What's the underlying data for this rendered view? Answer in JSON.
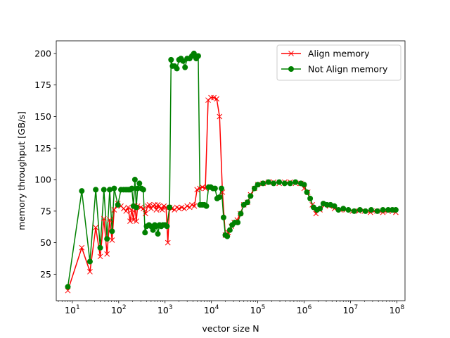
{
  "chart_data": {
    "type": "line",
    "title": "",
    "xlabel": "vector size N",
    "ylabel": "memory throughput [GB/s]",
    "x_scale": "log",
    "xlim": [
      4.5,
      150000000
    ],
    "ylim": [
      4,
      210
    ],
    "x_ticks": [
      {
        "value": 10,
        "base": "10",
        "exp": "1"
      },
      {
        "value": 100,
        "base": "10",
        "exp": "2"
      },
      {
        "value": 1000,
        "base": "10",
        "exp": "3"
      },
      {
        "value": 10000,
        "base": "10",
        "exp": "4"
      },
      {
        "value": 100000,
        "base": "10",
        "exp": "5"
      },
      {
        "value": 1000000,
        "base": "10",
        "exp": "6"
      },
      {
        "value": 10000000,
        "base": "10",
        "exp": "7"
      },
      {
        "value": 100000000,
        "base": "10",
        "exp": "8"
      }
    ],
    "y_ticks": [
      25,
      50,
      75,
      100,
      125,
      150,
      175,
      200
    ],
    "grid": false,
    "legend_position": "upper-right",
    "series": [
      {
        "name": "Align memory",
        "color": "#ff0000",
        "marker": "x",
        "points": [
          [
            8,
            12
          ],
          [
            16,
            46
          ],
          [
            24,
            27
          ],
          [
            32,
            62
          ],
          [
            40,
            39
          ],
          [
            48,
            69
          ],
          [
            56,
            41
          ],
          [
            64,
            68
          ],
          [
            72,
            52
          ],
          [
            80,
            76
          ],
          [
            96,
            81
          ],
          [
            112,
            79
          ],
          [
            128,
            77
          ],
          [
            144,
            75
          ],
          [
            160,
            78
          ],
          [
            176,
            67
          ],
          [
            192,
            76
          ],
          [
            208,
            68
          ],
          [
            224,
            79
          ],
          [
            240,
            67
          ],
          [
            256,
            79
          ],
          [
            300,
            78
          ],
          [
            340,
            77
          ],
          [
            380,
            73
          ],
          [
            420,
            79
          ],
          [
            460,
            80
          ],
          [
            500,
            77
          ],
          [
            550,
            79
          ],
          [
            600,
            80
          ],
          [
            650,
            76
          ],
          [
            700,
            80
          ],
          [
            750,
            79
          ],
          [
            800,
            77
          ],
          [
            870,
            76
          ],
          [
            950,
            79
          ],
          [
            1050,
            78
          ],
          [
            1150,
            50
          ],
          [
            1250,
            78
          ],
          [
            1400,
            77
          ],
          [
            1600,
            76
          ],
          [
            1800,
            78
          ],
          [
            2000,
            77
          ],
          [
            2300,
            78
          ],
          [
            2600,
            77
          ],
          [
            3000,
            79
          ],
          [
            3400,
            78
          ],
          [
            3800,
            80
          ],
          [
            4300,
            79
          ],
          [
            4900,
            92
          ],
          [
            5600,
            93
          ],
          [
            6400,
            94
          ],
          [
            7400,
            93
          ],
          [
            8500,
            163
          ],
          [
            9800,
            165
          ],
          [
            11300,
            165
          ],
          [
            13000,
            164
          ],
          [
            15000,
            150
          ],
          [
            17300,
            90
          ],
          [
            20000,
            56
          ],
          [
            23000,
            58
          ],
          [
            27000,
            63
          ],
          [
            31000,
            66
          ],
          [
            36000,
            68
          ],
          [
            42000,
            73
          ],
          [
            50000,
            80
          ],
          [
            60000,
            82
          ],
          [
            70000,
            88
          ],
          [
            85000,
            93
          ],
          [
            100000,
            96
          ],
          [
            130000,
            97
          ],
          [
            170000,
            98
          ],
          [
            220000,
            98
          ],
          [
            290000,
            97
          ],
          [
            380000,
            98
          ],
          [
            500000,
            98
          ],
          [
            650000,
            97
          ],
          [
            850000,
            97
          ],
          [
            1000000,
            93
          ],
          [
            1200000,
            90
          ],
          [
            1500000,
            80
          ],
          [
            1800000,
            73
          ],
          [
            2200000,
            76
          ],
          [
            2800000,
            80
          ],
          [
            3500000,
            79
          ],
          [
            4500000,
            77
          ],
          [
            6000000,
            76
          ],
          [
            8000000,
            76
          ],
          [
            11000000,
            75
          ],
          [
            15000000,
            75
          ],
          [
            20000000,
            75
          ],
          [
            27000000,
            74
          ],
          [
            37000000,
            75
          ],
          [
            50000000,
            74
          ],
          [
            65000000,
            75
          ],
          [
            80000000,
            75
          ],
          [
            95000000,
            74
          ]
        ]
      },
      {
        "name": "Not Align memory",
        "color": "#008000",
        "marker": "o",
        "points": [
          [
            8,
            15
          ],
          [
            16,
            91
          ],
          [
            24,
            35
          ],
          [
            32,
            92
          ],
          [
            40,
            46
          ],
          [
            48,
            92
          ],
          [
            56,
            53
          ],
          [
            64,
            92
          ],
          [
            72,
            59
          ],
          [
            80,
            93
          ],
          [
            96,
            80
          ],
          [
            112,
            92
          ],
          [
            128,
            92
          ],
          [
            144,
            92
          ],
          [
            160,
            92
          ],
          [
            176,
            92
          ],
          [
            192,
            93
          ],
          [
            208,
            79
          ],
          [
            224,
            100
          ],
          [
            240,
            78
          ],
          [
            256,
            93
          ],
          [
            280,
            97
          ],
          [
            310,
            93
          ],
          [
            340,
            92
          ],
          [
            370,
            58
          ],
          [
            400,
            63
          ],
          [
            450,
            64
          ],
          [
            500,
            63
          ],
          [
            550,
            60
          ],
          [
            600,
            64
          ],
          [
            650,
            63
          ],
          [
            700,
            57
          ],
          [
            760,
            64
          ],
          [
            830,
            63
          ],
          [
            900,
            64
          ],
          [
            1000,
            64
          ],
          [
            1100,
            63
          ],
          [
            1250,
            78
          ],
          [
            1350,
            195
          ],
          [
            1450,
            190
          ],
          [
            1600,
            190
          ],
          [
            1800,
            188
          ],
          [
            2000,
            195
          ],
          [
            2200,
            196
          ],
          [
            2450,
            194
          ],
          [
            2700,
            189
          ],
          [
            3000,
            196
          ],
          [
            3400,
            196
          ],
          [
            3800,
            198
          ],
          [
            4200,
            200
          ],
          [
            4700,
            196
          ],
          [
            5200,
            198
          ],
          [
            5700,
            80
          ],
          [
            6300,
            80
          ],
          [
            7000,
            80
          ],
          [
            7800,
            79
          ],
          [
            8700,
            94
          ],
          [
            9700,
            94
          ],
          [
            10800,
            93
          ],
          [
            12000,
            93
          ],
          [
            13300,
            85
          ],
          [
            14800,
            86
          ],
          [
            16500,
            93
          ],
          [
            18300,
            70
          ],
          [
            20000,
            56
          ],
          [
            22000,
            55
          ],
          [
            25000,
            60
          ],
          [
            28000,
            64
          ],
          [
            32000,
            66
          ],
          [
            37000,
            66
          ],
          [
            43000,
            73
          ],
          [
            50000,
            80
          ],
          [
            60000,
            82
          ],
          [
            70000,
            87
          ],
          [
            85000,
            93
          ],
          [
            100000,
            96
          ],
          [
            130000,
            97
          ],
          [
            170000,
            98
          ],
          [
            220000,
            97
          ],
          [
            290000,
            98
          ],
          [
            380000,
            97
          ],
          [
            500000,
            97
          ],
          [
            650000,
            98
          ],
          [
            850000,
            97
          ],
          [
            1000000,
            96
          ],
          [
            1150000,
            90
          ],
          [
            1350000,
            85
          ],
          [
            1600000,
            78
          ],
          [
            1900000,
            76
          ],
          [
            2200000,
            77
          ],
          [
            2600000,
            81
          ],
          [
            3100000,
            80
          ],
          [
            3700000,
            80
          ],
          [
            4500000,
            79
          ],
          [
            5500000,
            76
          ],
          [
            7000000,
            77
          ],
          [
            9000000,
            76
          ],
          [
            12000000,
            75
          ],
          [
            16000000,
            76
          ],
          [
            21000000,
            75
          ],
          [
            28000000,
            76
          ],
          [
            38000000,
            75
          ],
          [
            50000000,
            76
          ],
          [
            65000000,
            76
          ],
          [
            80000000,
            76
          ],
          [
            95000000,
            76
          ]
        ]
      }
    ]
  }
}
